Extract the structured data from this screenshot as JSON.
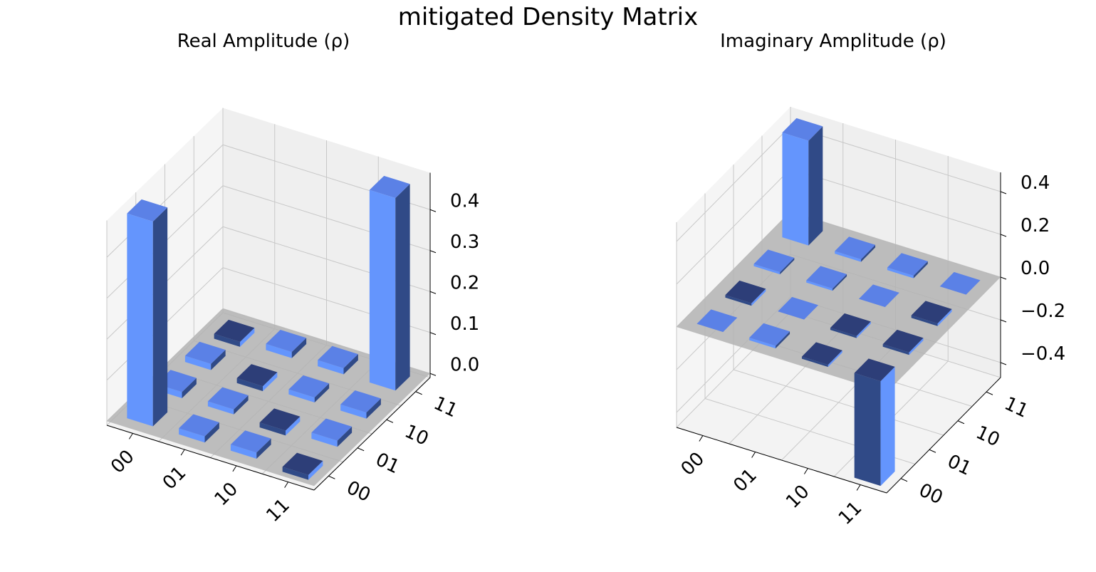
{
  "title": "mitigated Density Matrix",
  "colors": {
    "bar": "#6495fd",
    "bar_top": "#5b81e6",
    "bar_dark": "#304a87",
    "floor": "#b3b3b3"
  },
  "chart_data": [
    {
      "type": "bar3d",
      "title": "Real Amplitude (ρ)",
      "x_tick_labels": [
        "00",
        "01",
        "10",
        "11"
      ],
      "y_tick_labels": [
        "00",
        "01",
        "10",
        "11"
      ],
      "z_ticks": [
        0.0,
        0.1,
        0.2,
        0.3,
        0.4
      ],
      "z_tick_labels": [
        "0.0",
        "0.1",
        "0.2",
        "0.3",
        "0.4"
      ],
      "zlim": [
        -0.01,
        0.49
      ],
      "grid": true,
      "values": [
        [
          0.5,
          0.015,
          0.015,
          -0.012
        ],
        [
          0.015,
          0.012,
          -0.012,
          0.015
        ],
        [
          0.015,
          -0.012,
          0.012,
          0.015
        ],
        [
          -0.012,
          0.015,
          0.015,
          0.47
        ]
      ]
    },
    {
      "type": "bar3d",
      "title": "Imaginary Amplitude (ρ)",
      "x_tick_labels": [
        "00",
        "01",
        "10",
        "11"
      ],
      "y_tick_labels": [
        "00",
        "01",
        "10",
        "11"
      ],
      "z_ticks": [
        0.4,
        0.2,
        0.0,
        -0.2,
        -0.4
      ],
      "z_tick_labels": [
        "0.4",
        "0.2",
        "0.0",
        "−0.2",
        "−0.4"
      ],
      "zlim": [
        -0.47,
        0.49
      ],
      "grid": true,
      "values": [
        [
          0.0,
          0.012,
          -0.01,
          -0.49
        ],
        [
          -0.012,
          0.0,
          -0.01,
          -0.012
        ],
        [
          0.01,
          0.01,
          0.0,
          -0.012
        ],
        [
          0.49,
          0.012,
          0.012,
          0.0
        ]
      ]
    }
  ]
}
